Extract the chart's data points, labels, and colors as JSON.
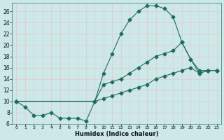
{
  "xlabel": "Humidex (Indice chaleur)",
  "bg_color": "#cce8e8",
  "grid_color": "#e8c8c8",
  "line_color": "#1a6e5e",
  "xlim": [
    -0.5,
    23.5
  ],
  "ylim": [
    6,
    27.5
  ],
  "yticks": [
    6,
    8,
    10,
    12,
    14,
    16,
    18,
    20,
    22,
    24,
    26
  ],
  "xticks": [
    0,
    1,
    2,
    3,
    4,
    5,
    6,
    7,
    8,
    9,
    10,
    11,
    12,
    13,
    14,
    15,
    16,
    17,
    18,
    19,
    20,
    21,
    22,
    23
  ],
  "series1_x": [
    0,
    1,
    2,
    3,
    4,
    5,
    6,
    7,
    8,
    9,
    10,
    11,
    12,
    13,
    14,
    15,
    16,
    17,
    18,
    19,
    20,
    21,
    22,
    23
  ],
  "series1_y": [
    10,
    9,
    7.5,
    7.5,
    8,
    7,
    7,
    7,
    6.5,
    10,
    15,
    18.5,
    22,
    24.5,
    26,
    27,
    27,
    26.5,
    25,
    20.5,
    17.5,
    15,
    15.5,
    15.5
  ],
  "series2_x": [
    0,
    9,
    10,
    11,
    12,
    13,
    14,
    15,
    16,
    17,
    18,
    19,
    20,
    21,
    22,
    23
  ],
  "series2_y": [
    10,
    10,
    13,
    13.5,
    14,
    15,
    16,
    17,
    18,
    18.5,
    19,
    20.5,
    17.5,
    15.5,
    15.5,
    15.5
  ],
  "series3_x": [
    0,
    9,
    10,
    11,
    12,
    13,
    14,
    15,
    16,
    17,
    18,
    19,
    20,
    21,
    22,
    23
  ],
  "series3_y": [
    10,
    10,
    10.5,
    11,
    11.5,
    12,
    12.5,
    13,
    14,
    14.5,
    15,
    15.5,
    16,
    15,
    15.5,
    15.5
  ]
}
